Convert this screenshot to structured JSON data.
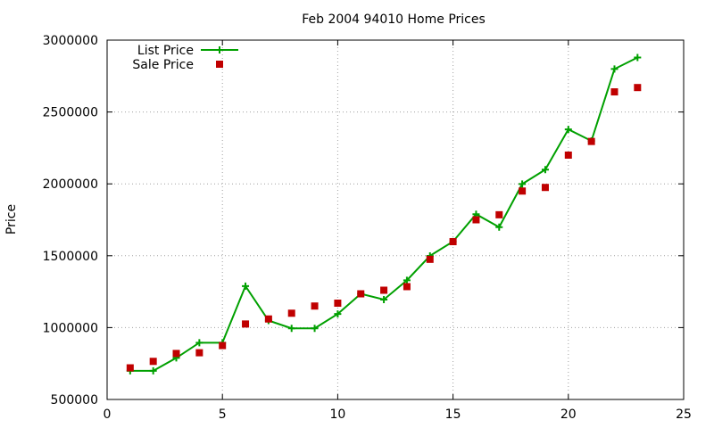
{
  "chart_data": {
    "type": "line",
    "title": "Feb 2004 94010 Home Prices",
    "xlabel": "",
    "ylabel": "Price",
    "xlim": [
      0,
      25
    ],
    "ylim": [
      500000,
      3000000
    ],
    "xticks": [
      0,
      5,
      10,
      15,
      20,
      25
    ],
    "yticks": [
      500000,
      1000000,
      1500000,
      2000000,
      2500000,
      3000000
    ],
    "xtick_labels": [
      "0",
      "5",
      "10",
      "15",
      "20",
      "25"
    ],
    "ytick_labels": [
      "500000",
      "1000000",
      "1500000",
      "2000000",
      "2500000",
      "3000000"
    ],
    "grid": true,
    "legend_position": "top-left",
    "series": [
      {
        "name": "List Price",
        "kind": "line-with-plus-markers",
        "color": "#00a000",
        "x": [
          1,
          2,
          3,
          4,
          5,
          6,
          7,
          8,
          9,
          10,
          11,
          12,
          13,
          14,
          15,
          16,
          17,
          18,
          19,
          20,
          21,
          22,
          23
        ],
        "values": [
          699000,
          699000,
          789000,
          895000,
          895000,
          1289000,
          1049000,
          995000,
          995000,
          1095000,
          1235000,
          1195000,
          1329000,
          1499000,
          1599000,
          1789000,
          1699000,
          1999000,
          2099000,
          2379000,
          2299000,
          2799000,
          2879000
        ]
      },
      {
        "name": "Sale Price",
        "kind": "square-markers",
        "color": "#c00000",
        "x": [
          1,
          2,
          3,
          4,
          5,
          6,
          7,
          8,
          9,
          10,
          11,
          12,
          13,
          14,
          15,
          16,
          17,
          18,
          19,
          20,
          21,
          22,
          23
        ],
        "values": [
          720000,
          765000,
          820000,
          825000,
          875000,
          1025000,
          1060000,
          1100000,
          1150000,
          1170000,
          1235000,
          1260000,
          1285000,
          1475000,
          1598000,
          1750000,
          1785000,
          1950000,
          1975000,
          2200000,
          2295000,
          2640000,
          2670000
        ]
      }
    ]
  }
}
